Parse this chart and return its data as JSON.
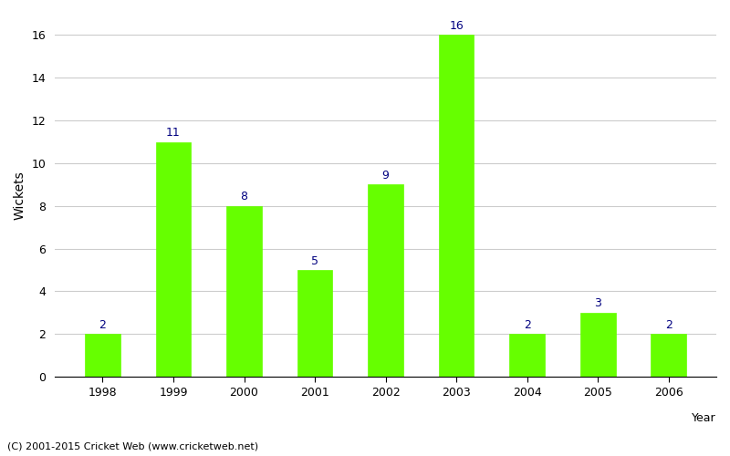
{
  "categories": [
    "1998",
    "1999",
    "2000",
    "2001",
    "2002",
    "2003",
    "2004",
    "2005",
    "2006"
  ],
  "values": [
    2,
    11,
    8,
    5,
    9,
    16,
    2,
    3,
    2
  ],
  "bar_color": "#66ff00",
  "bar_edgecolor": "#66ff00",
  "label_color": "#000080",
  "label_fontsize": 9,
  "ylabel": "Wickets",
  "ylabel_fontsize": 10,
  "tick_fontsize": 9,
  "ylim": [
    0,
    17
  ],
  "yticks": [
    0,
    2,
    4,
    6,
    8,
    10,
    12,
    14,
    16
  ],
  "grid_color": "#cccccc",
  "background_color": "#ffffff",
  "footer_text": "(C) 2001-2015 Cricket Web (www.cricketweb.net)",
  "footer_fontsize": 8,
  "bar_width": 0.5
}
